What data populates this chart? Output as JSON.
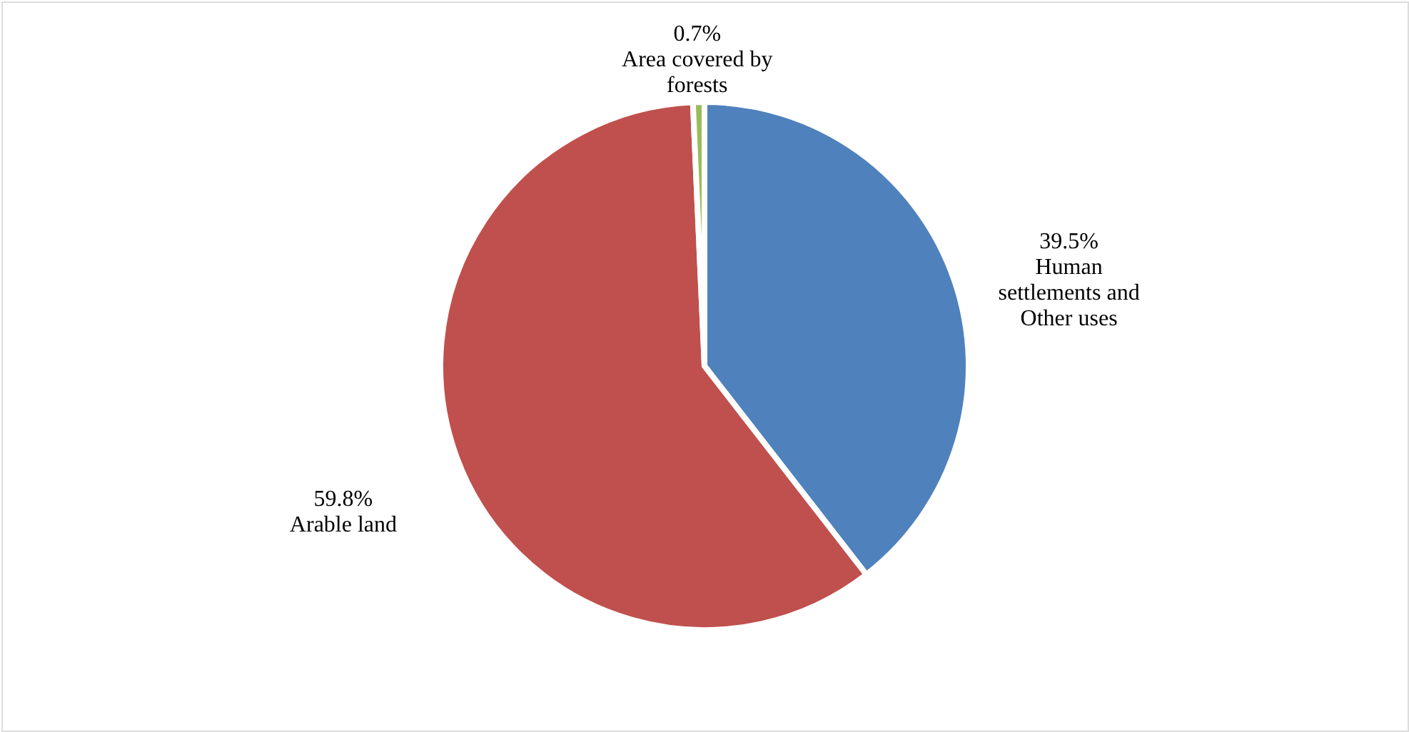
{
  "chart_data": {
    "type": "pie",
    "categories": [
      "Human settlements and Other uses",
      "Arable land",
      "Area covered by forests"
    ],
    "values": [
      39.5,
      59.8,
      0.7
    ],
    "value_labels": [
      "39.5%",
      "59.8%",
      "0.7%"
    ],
    "colors": [
      "#4f81bd",
      "#c0504d",
      "#9bbb59"
    ]
  }
}
